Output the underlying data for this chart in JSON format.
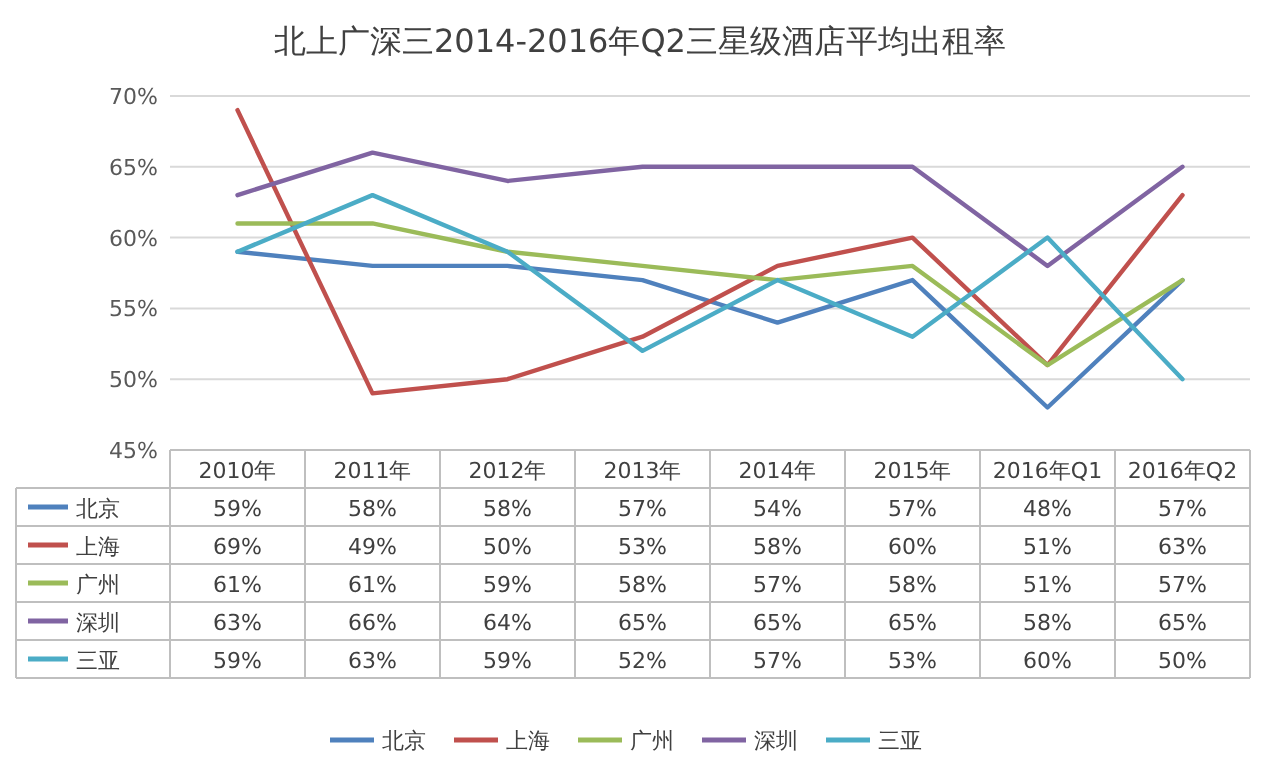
{
  "chart_data": {
    "type": "line",
    "title": "北上广深三2014-2016年Q2三星级酒店平均出租率",
    "categories": [
      "2010年",
      "2011年",
      "2012年",
      "2013年",
      "2014年",
      "2015年",
      "2016年Q1",
      "2016年Q2"
    ],
    "series": [
      {
        "name": "北京",
        "color": "#4f81bd",
        "values": [
          59,
          58,
          58,
          57,
          54,
          57,
          48,
          57
        ],
        "value_labels": [
          "59%",
          "58%",
          "58%",
          "57%",
          "54%",
          "57%",
          "48%",
          "57%"
        ]
      },
      {
        "name": "上海",
        "color": "#c0504d",
        "values": [
          69,
          49,
          50,
          53,
          58,
          60,
          51,
          63
        ],
        "value_labels": [
          "69%",
          "49%",
          "50%",
          "53%",
          "58%",
          "60%",
          "51%",
          "63%"
        ]
      },
      {
        "name": "广州",
        "color": "#9bbb59",
        "values": [
          61,
          61,
          59,
          58,
          57,
          58,
          51,
          57
        ],
        "value_labels": [
          "61%",
          "61%",
          "59%",
          "58%",
          "57%",
          "58%",
          "51%",
          "57%"
        ]
      },
      {
        "name": "深圳",
        "color": "#8064a2",
        "values": [
          63,
          66,
          64,
          65,
          65,
          65,
          58,
          65
        ],
        "value_labels": [
          "63%",
          "66%",
          "64%",
          "65%",
          "65%",
          "65%",
          "58%",
          "65%"
        ]
      },
      {
        "name": "三亚",
        "color": "#4bacc6",
        "values": [
          59,
          63,
          59,
          52,
          57,
          53,
          60,
          50
        ],
        "value_labels": [
          "59%",
          "63%",
          "59%",
          "52%",
          "57%",
          "53%",
          "60%",
          "50%"
        ]
      }
    ],
    "ylim": [
      45,
      70
    ],
    "yticks": [
      {
        "value": 45,
        "label": "45%"
      },
      {
        "value": 50,
        "label": "50%"
      },
      {
        "value": 55,
        "label": "55%"
      },
      {
        "value": 60,
        "label": "60%"
      },
      {
        "value": 65,
        "label": "65%"
      },
      {
        "value": 70,
        "label": "70%"
      }
    ],
    "grid": "y",
    "legend": "bottom",
    "marker": "none",
    "line_style": "solid"
  }
}
